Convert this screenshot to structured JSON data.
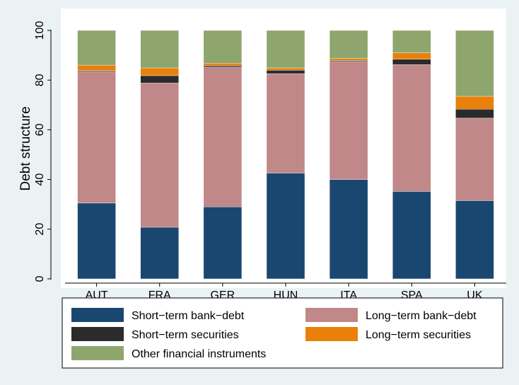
{
  "chart_data": {
    "type": "bar",
    "stacked": true,
    "title": "",
    "xlabel": "",
    "ylabel": "Debt structure",
    "ylim": [
      0,
      100
    ],
    "yticks": [
      0,
      20,
      40,
      60,
      80,
      100
    ],
    "grid": false,
    "legend_position": "bottom",
    "categories": [
      "AUT",
      "FRA",
      "GER",
      "HUN",
      "ITA",
      "SPA",
      "UK"
    ],
    "series": [
      {
        "name": "Short−term bank−debt",
        "color": "#1a476f",
        "values": [
          30.5,
          20.8,
          29.0,
          42.6,
          40.0,
          35.2,
          31.5
        ]
      },
      {
        "name": "Long−term bank−debt",
        "color": "#c08888",
        "values": [
          53.0,
          58.0,
          56.3,
          40.0,
          47.5,
          51.0,
          33.2
        ]
      },
      {
        "name": "Short−term securities",
        "color": "#2b2b2b",
        "values": [
          0.3,
          3.0,
          0.5,
          1.4,
          0.4,
          2.2,
          3.6
        ]
      },
      {
        "name": "Long−term securities",
        "color": "#e8800a",
        "values": [
          2.2,
          3.1,
          1.0,
          0.9,
          0.8,
          2.6,
          5.2
        ]
      },
      {
        "name": "Other financial instruments",
        "color": "#8ea66e",
        "values": [
          14.0,
          15.1,
          13.2,
          15.1,
          11.3,
          9.0,
          26.5
        ]
      }
    ]
  }
}
